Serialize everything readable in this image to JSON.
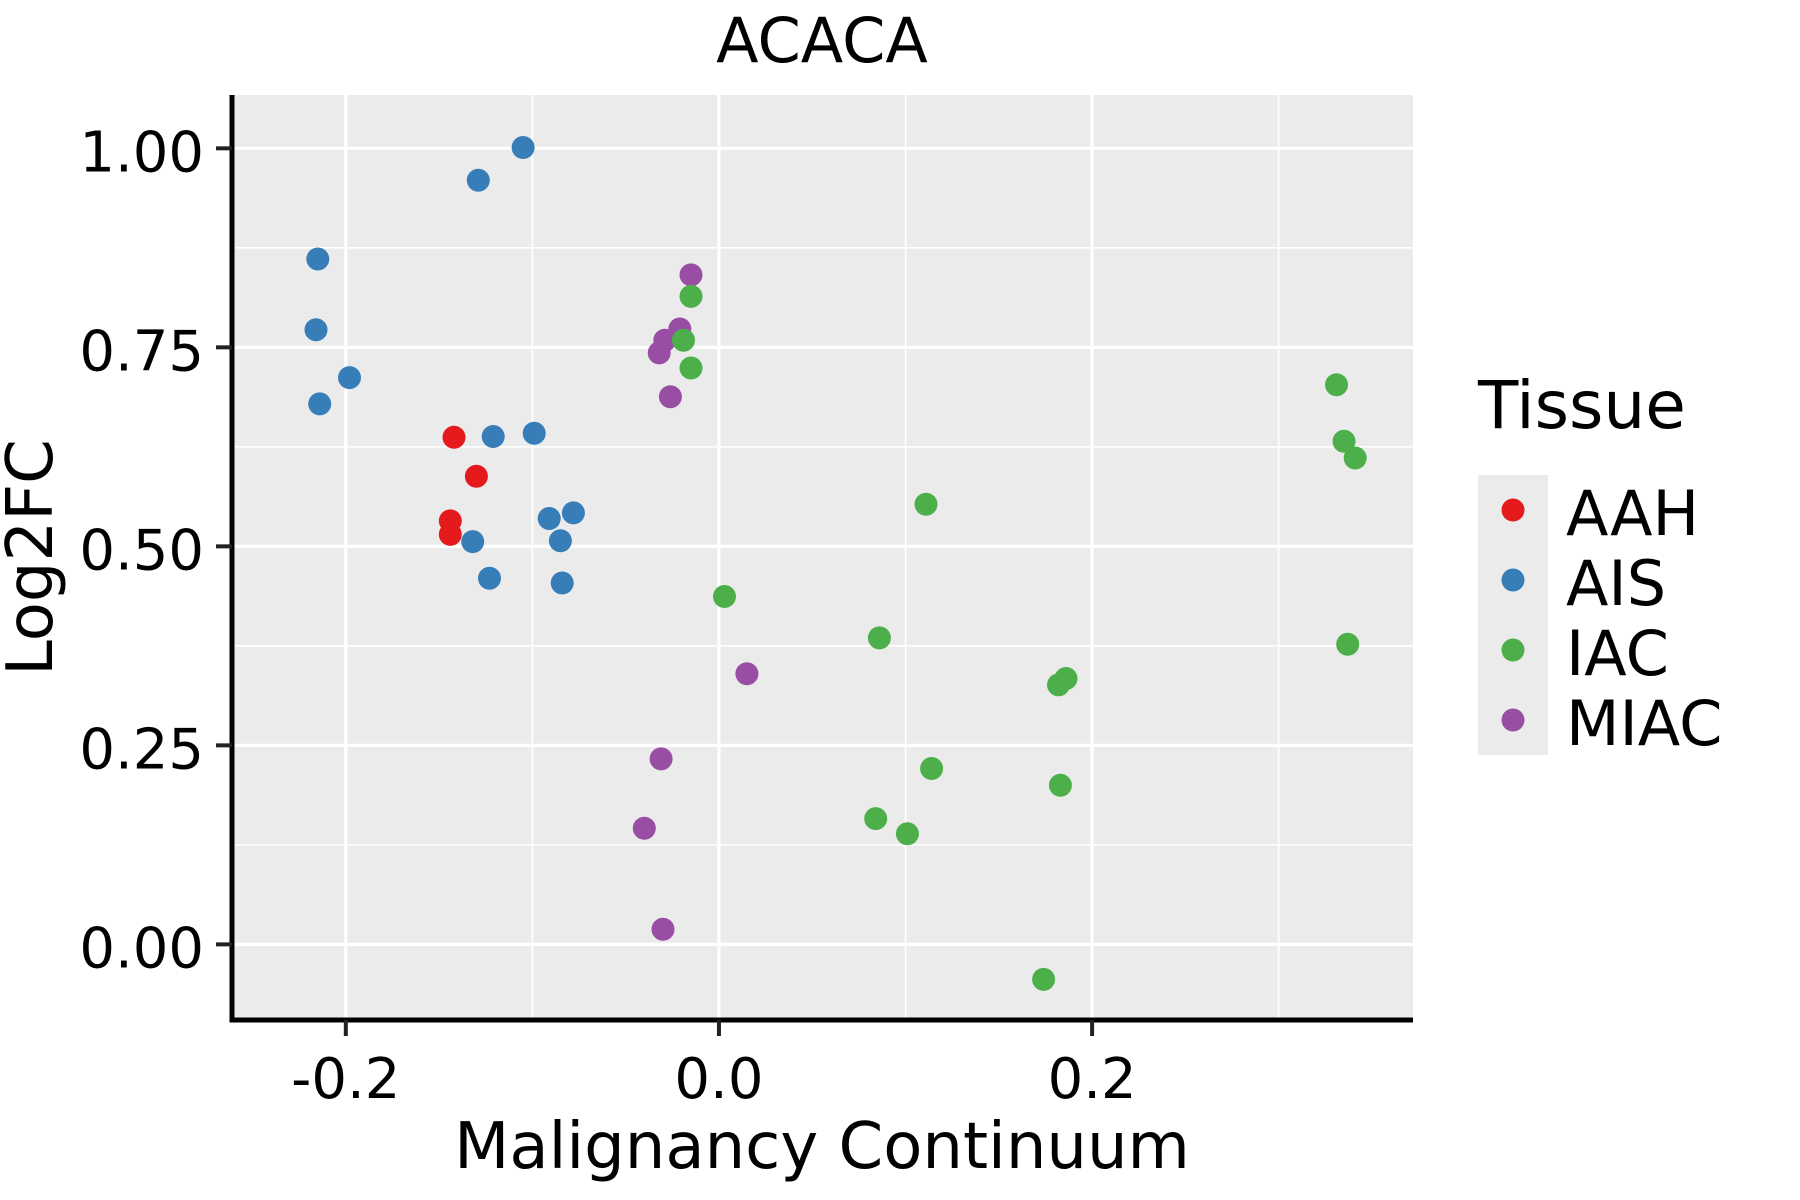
{
  "chart_data": {
    "type": "scatter",
    "title": "ACACA",
    "xlabel": "Malignancy Continuum",
    "ylabel": "Log2FC",
    "xlim": [
      -0.261,
      0.372
    ],
    "ylim": [
      -0.095,
      1.067
    ],
    "x_ticks": [
      -0.2,
      0.0,
      0.2
    ],
    "x_tick_labels": [
      "-0.2",
      "0.0",
      "0.2"
    ],
    "x_minor_ticks": [
      -0.1,
      0.1,
      0.3
    ],
    "y_ticks": [
      0.0,
      0.25,
      0.5,
      0.75,
      1.0
    ],
    "y_tick_labels": [
      "0.00",
      "0.25",
      "0.50",
      "0.75",
      "1.00"
    ],
    "y_minor_ticks": [
      0.125,
      0.375,
      0.625,
      0.875
    ],
    "grid": true,
    "legend_position": "right",
    "legend_title": "Tissue",
    "panel_background": "#EBEBEB",
    "gridline_color": "#FFFFFF",
    "axis_color": "#000000",
    "series": [
      {
        "name": "AAH",
        "color": "#E41A1C",
        "points": [
          [
            -0.142,
            0.637
          ],
          [
            -0.13,
            0.588
          ],
          [
            -0.144,
            0.532
          ],
          [
            -0.144,
            0.515
          ]
        ]
      },
      {
        "name": "AIS",
        "color": "#377EB8",
        "points": [
          [
            -0.105,
            1.001
          ],
          [
            -0.129,
            0.96
          ],
          [
            -0.215,
            0.861
          ],
          [
            -0.216,
            0.772
          ],
          [
            -0.198,
            0.712
          ],
          [
            -0.214,
            0.679
          ],
          [
            -0.121,
            0.638
          ],
          [
            -0.099,
            0.642
          ],
          [
            -0.091,
            0.535
          ],
          [
            -0.078,
            0.542
          ],
          [
            -0.085,
            0.507
          ],
          [
            -0.132,
            0.506
          ],
          [
            -0.123,
            0.46
          ],
          [
            -0.084,
            0.454
          ]
        ]
      },
      {
        "name": "IAC",
        "color": "#4DAF4A",
        "points": [
          [
            -0.015,
            0.814
          ],
          [
            -0.019,
            0.759
          ],
          [
            -0.015,
            0.724
          ],
          [
            0.003,
            0.437
          ],
          [
            0.086,
            0.385
          ],
          [
            0.111,
            0.553
          ],
          [
            0.114,
            0.221
          ],
          [
            0.101,
            0.139
          ],
          [
            0.084,
            0.158
          ],
          [
            0.182,
            0.326
          ],
          [
            0.186,
            0.334
          ],
          [
            0.183,
            0.2
          ],
          [
            0.174,
            -0.044
          ],
          [
            0.331,
            0.703
          ],
          [
            0.335,
            0.632
          ],
          [
            0.341,
            0.611
          ],
          [
            0.337,
            0.377
          ]
        ]
      },
      {
        "name": "MIAC",
        "color": "#984EA3",
        "points": [
          [
            -0.015,
            0.841
          ],
          [
            -0.021,
            0.773
          ],
          [
            -0.029,
            0.759
          ],
          [
            -0.032,
            0.743
          ],
          [
            -0.026,
            0.688
          ],
          [
            0.015,
            0.34
          ],
          [
            -0.031,
            0.233
          ],
          [
            -0.04,
            0.146
          ],
          [
            -0.03,
            0.019
          ]
        ]
      }
    ]
  },
  "legend": {
    "title": "Tissue",
    "items": [
      {
        "label": "AAH",
        "color": "#E41A1C"
      },
      {
        "label": "AIS",
        "color": "#377EB8"
      },
      {
        "label": "IAC",
        "color": "#4DAF4A"
      },
      {
        "label": "MIAC",
        "color": "#984EA3"
      }
    ]
  }
}
